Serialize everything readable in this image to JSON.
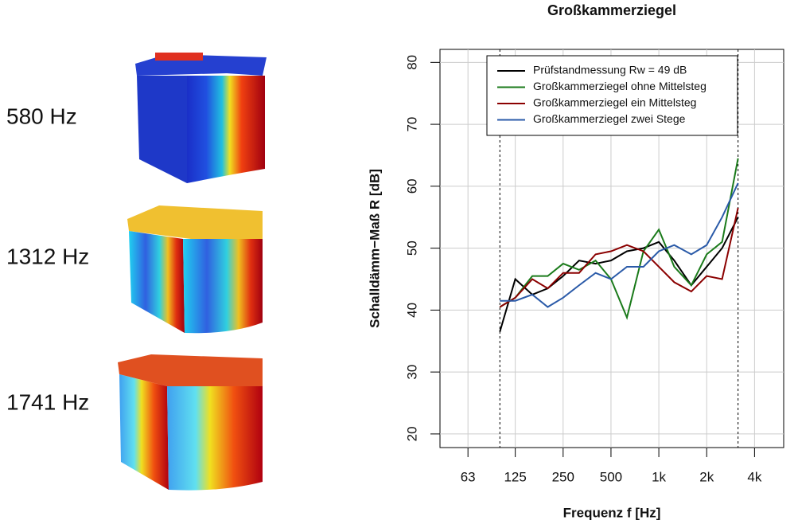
{
  "modes": [
    {
      "label": "580 Hz"
    },
    {
      "label": "1312 Hz"
    },
    {
      "label": "1741 Hz"
    }
  ],
  "chart_data": {
    "type": "line",
    "title": "Großkammerziegel",
    "x_label": "Frequenz f [Hz]",
    "y_label": "Schalldämm−Maß R [dB]",
    "x": [
      100,
      125,
      160,
      200,
      250,
      315,
      400,
      500,
      630,
      800,
      1000,
      1250,
      1600,
      2000,
      2500,
      3150
    ],
    "log_x": true,
    "grid": true,
    "legend": "top-right",
    "xlim": [
      42,
      6100
    ],
    "ylim": [
      17.8,
      82.1
    ],
    "xticks": [
      63,
      125,
      250,
      500,
      {
        "value": 1000,
        "label": "1k"
      },
      {
        "value": 2000,
        "label": "2k"
      },
      {
        "value": 4000,
        "label": "4k"
      }
    ],
    "yticks": [
      20,
      30,
      40,
      50,
      60,
      70,
      80
    ],
    "series": [
      {
        "name": "Prüfstandmessung Rw = 49 dB",
        "color": "#000000",
        "values": [
          36.5,
          45,
          42.5,
          43.5,
          45.5,
          48,
          47.5,
          48,
          49.5,
          50,
          51,
          48,
          44,
          47,
          50,
          55
        ]
      },
      {
        "name": "Großkammerziegel ohne Mittelsteg",
        "color": "#1a7a1a",
        "values": [
          40.5,
          42,
          45.5,
          45.5,
          47.5,
          46.5,
          48,
          45,
          38.8,
          49.5,
          53,
          47,
          44,
          49,
          51,
          64.5
        ]
      },
      {
        "name": "Großkammerziegel ein Mittelsteg",
        "color": "#8b0000",
        "values": [
          40.5,
          42,
          45,
          43.5,
          46,
          46,
          49,
          49.5,
          50.5,
          49.5,
          47,
          44.5,
          43,
          45.5,
          45,
          56.5
        ]
      },
      {
        "name": "Großkammerziegel zwei Stege",
        "color": "#2a5aa8",
        "values": [
          41.5,
          41.5,
          42.5,
          40.5,
          42,
          44,
          46,
          45,
          47,
          47,
          49.5,
          50.5,
          49,
          50.5,
          55,
          60.5
        ]
      }
    ]
  }
}
